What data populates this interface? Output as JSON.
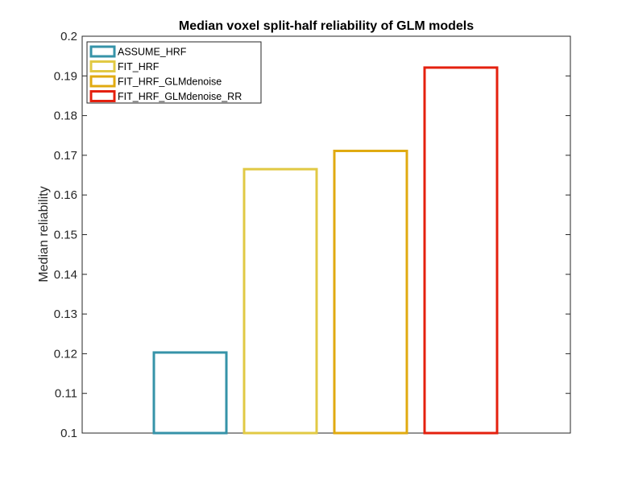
{
  "chart_data": {
    "type": "bar",
    "title": "Median voxel split-half reliability of GLM models",
    "xlabel": "",
    "ylabel": "Median reliability",
    "ylim": [
      0.1,
      0.2
    ],
    "yticks": [
      "0.1",
      "0.11",
      "0.12",
      "0.13",
      "0.14",
      "0.15",
      "0.16",
      "0.17",
      "0.18",
      "0.19",
      "0.2"
    ],
    "grid": false,
    "legend_position": "top-left",
    "bar_style": "outline",
    "series": [
      {
        "name": "ASSUME_HRF",
        "value": 0.1203,
        "color": "#3693a8"
      },
      {
        "name": "FIT_HRF",
        "value": 0.1665,
        "color": "#e1c944"
      },
      {
        "name": "FIT_HRF_GLMdenoise",
        "value": 0.1711,
        "color": "#e0aa10"
      },
      {
        "name": "FIT_HRF_GLMdenoise_RR",
        "value": 0.1921,
        "color": "#e4200e"
      }
    ]
  }
}
